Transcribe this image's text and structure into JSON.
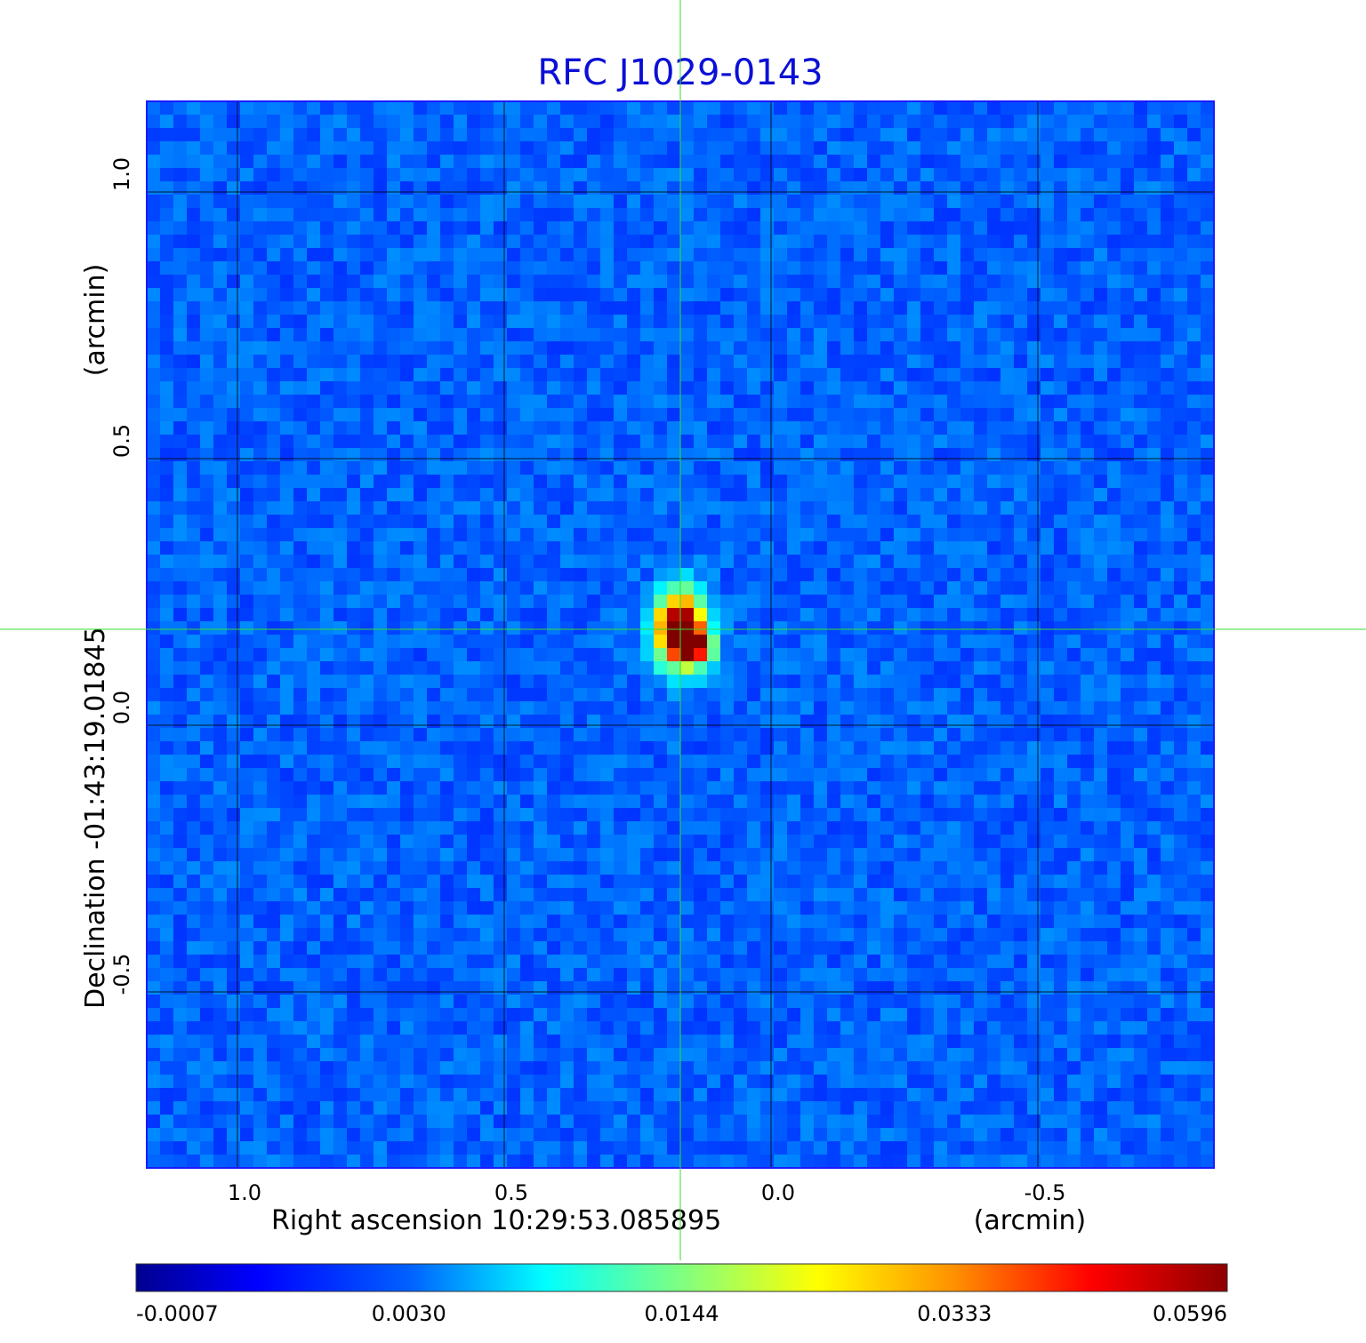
{
  "chart_data": {
    "type": "heatmap",
    "title": "RFC J1029-0143",
    "xlabel": "Right ascension  10:29:53.085895",
    "xunit": "(arcmin)",
    "ylabel": "Declination  -01:43:19.01845",
    "yunit": "(arcmin)",
    "x_ticks": [
      1.0,
      0.5,
      0.0,
      -0.5
    ],
    "x_tick_labels": [
      "1.0",
      "0.5",
      "0.0",
      "-0.5"
    ],
    "y_ticks": [
      1.0,
      0.5,
      0.0,
      -0.5
    ],
    "y_tick_labels": [
      "1.0",
      "0.5",
      "0.0",
      "-0.5"
    ],
    "xlim": [
      1.17,
      -0.83
    ],
    "ylim": [
      -0.83,
      1.17
    ],
    "x_reversed": true,
    "grid": true,
    "crosshair": {
      "x": 0.17,
      "y": 0.18,
      "color": "#33dd33"
    },
    "source": {
      "x": 0.17,
      "y": 0.18,
      "peak": 0.0596
    },
    "colorbar": {
      "labels": [
        "-0.0007",
        "0.0030",
        "0.0144",
        "0.0333",
        "0.0596"
      ],
      "values": [
        -0.0007,
        0.003,
        0.0144,
        0.0333,
        0.0596
      ],
      "colormap": "jet"
    }
  }
}
